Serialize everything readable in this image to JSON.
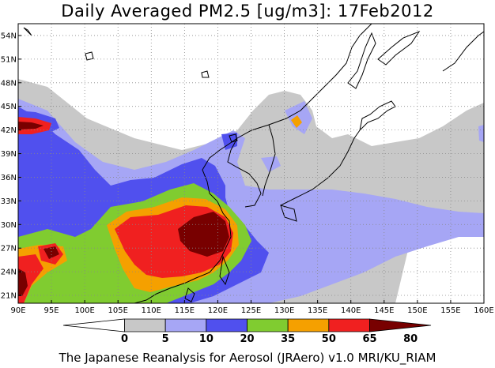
{
  "title": "Daily Averaged PM2.5 [ug/m3]: 17Feb2012",
  "footer": "The Japanese Reanalysis for Aerosol (JRAero) v1.0 MRI/KU_RIAM",
  "map": {
    "lon_range": [
      90,
      160
    ],
    "lat_range": [
      20,
      55.5
    ],
    "lat_ticks": [
      "54N",
      "51N",
      "48N",
      "45N",
      "42N",
      "39N",
      "36N",
      "33N",
      "30N",
      "27N",
      "24N",
      "21N"
    ],
    "lon_ticks": [
      "90E",
      "95E",
      "100E",
      "105E",
      "110E",
      "115E",
      "120E",
      "125E",
      "130E",
      "135E",
      "140E",
      "145E",
      "150E",
      "155E",
      "160E"
    ],
    "grid": true
  },
  "colorbar": {
    "labels": [
      "0",
      "5",
      "10",
      "20",
      "35",
      "50",
      "65",
      "80"
    ],
    "colors": [
      "#ffffff",
      "#c8c8c8",
      "#a6a6f5",
      "#5050ee",
      "#80cc30",
      "#f5a000",
      "#f02020",
      "#780000"
    ]
  }
}
